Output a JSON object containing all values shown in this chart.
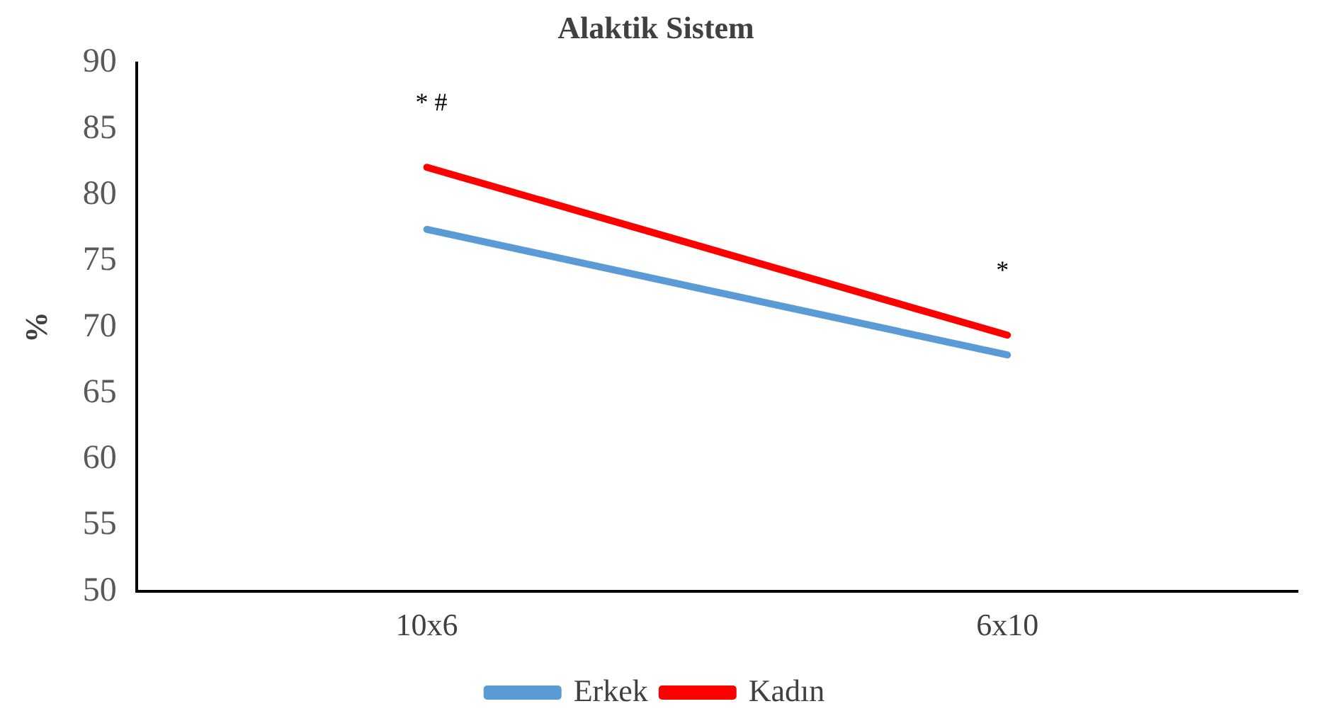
{
  "chart_data": {
    "type": "line",
    "title": "Alaktik Sistem",
    "ylabel": "%",
    "categories": [
      "10x6",
      "6x10"
    ],
    "series": [
      {
        "name": "Erkek",
        "color": "#5b9bd5",
        "values": [
          77.4,
          67.9
        ]
      },
      {
        "name": "Kadın",
        "color": "#ff0000",
        "values": [
          82.1,
          69.4
        ]
      }
    ],
    "ylim": [
      50,
      90
    ],
    "yticks": [
      50,
      55,
      60,
      65,
      70,
      75,
      80,
      85,
      90
    ],
    "grid": false,
    "legend": "bottom",
    "marker": "none",
    "line_style": "solid",
    "annotations": [
      "* #",
      "*"
    ]
  }
}
